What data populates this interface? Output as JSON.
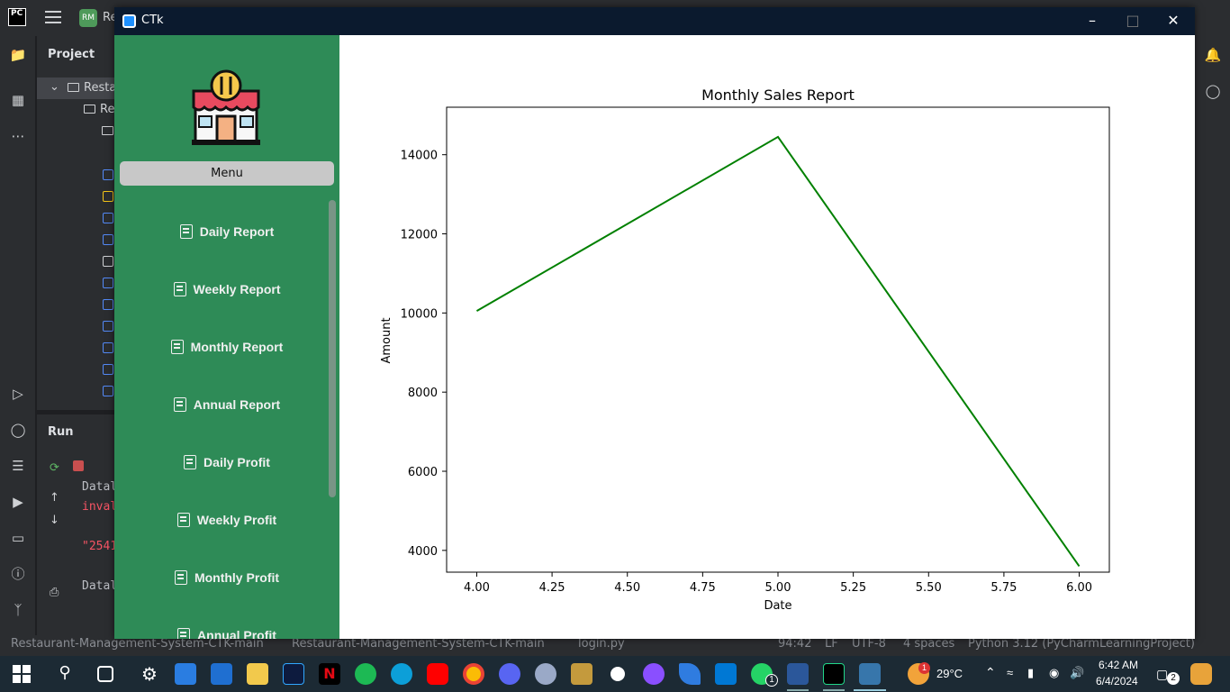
{
  "ide": {
    "project_label": "Project",
    "tree_root": "Resta",
    "tree_sub": "Re",
    "run_label": "Run",
    "top_badge": "RM",
    "top_text": "Re",
    "console": [
      "Datal",
      "inval",
      "\"2541",
      "Datal"
    ]
  },
  "statusbar": {
    "path1": "Restaurant-Management-System-CTK-main",
    "path2": "Restaurant-Management-System-CTK-main",
    "file": "login.py",
    "position": "94:42",
    "line_ending": "LF",
    "encoding": "UTF-8",
    "indent": "4 spaces",
    "interpreter": "Python 3.12 (PyCharmLearningProject)"
  },
  "window": {
    "title": "CTk",
    "menu_label": "Menu",
    "nav": [
      "Daily Report",
      "Weekly Report",
      "Monthly Report",
      "Annual Report",
      "Daily Profit",
      "Weekly Profit",
      "Monthly Profit",
      "Annual Profit"
    ]
  },
  "chart_data": {
    "type": "line",
    "title": "Monthly Sales Report",
    "xlabel": "Date",
    "ylabel": "Amount",
    "x": [
      4.0,
      5.0,
      6.0
    ],
    "series": [
      {
        "values": [
          10050,
          14450,
          3600
        ],
        "color": "#008000"
      }
    ],
    "xlim": [
      3.9,
      6.1
    ],
    "ylim": [
      3450,
      15200
    ],
    "xticks": [
      "4.00",
      "4.25",
      "4.50",
      "4.75",
      "5.00",
      "5.25",
      "5.50",
      "5.75",
      "6.00"
    ],
    "xtick_values": [
      4.0,
      4.25,
      4.5,
      4.75,
      5.0,
      5.25,
      5.5,
      5.75,
      6.0
    ],
    "yticks": [
      "4000",
      "6000",
      "8000",
      "10000",
      "12000",
      "14000"
    ],
    "ytick_values": [
      4000,
      6000,
      8000,
      10000,
      12000,
      14000
    ],
    "grid": false
  },
  "taskbar": {
    "weather": "29°C",
    "time": "6:42 AM",
    "date": "6/4/2024",
    "notif_count": "2",
    "weather_badge": "1",
    "whatsapp_badge": "1"
  },
  "colors": {
    "sidebar": "#2e8b57",
    "titlebar": "#0b1a2e",
    "line": "#008000"
  }
}
